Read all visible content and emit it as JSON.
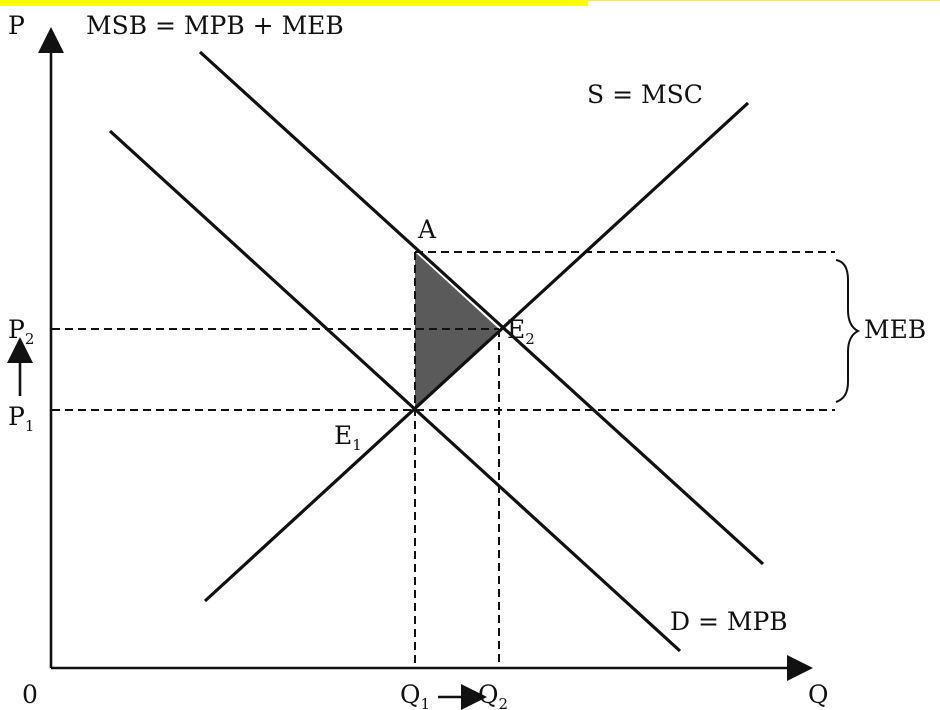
{
  "labels": {
    "axis_p": "P",
    "axis_q": "Q",
    "origin": "0",
    "msb": "MSB = MPB + MEB",
    "supply": "S = MSC",
    "demand": "D = MPB",
    "meb": "MEB",
    "point_a": "A",
    "e1_main": "E",
    "e1_sub": "1",
    "e2_main": "E",
    "e2_sub": "2",
    "p1_main": "P",
    "p1_sub": "1",
    "p2_main": "P",
    "p2_sub": "2",
    "q1_main": "Q",
    "q1_sub": "1",
    "q2_main": "Q",
    "q2_sub": "2"
  },
  "colors": {
    "ink": "#111111",
    "shaded_area": "#5a5a5a",
    "highlight_bar": "#ffff00"
  }
}
